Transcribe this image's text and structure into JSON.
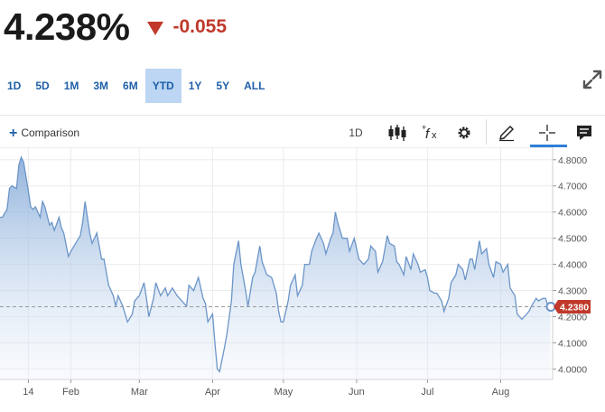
{
  "quote": {
    "price": "4.238%",
    "change": "-0.055",
    "direction_icon": "down-triangle-icon",
    "change_color": "#c0392b"
  },
  "ranges": {
    "items": [
      "1D",
      "5D",
      "1M",
      "3M",
      "6M",
      "YTD",
      "1Y",
      "5Y",
      "ALL"
    ],
    "active": "YTD"
  },
  "toolbar": {
    "comparison_label": "Comparison",
    "interval_label": "1D",
    "icons": [
      "candlestick-icon",
      "function-icon",
      "gear-icon",
      "pencil-icon",
      "crosshair-icon",
      "comment-icon"
    ],
    "active_tool": "crosshair-icon",
    "accent": "#2f7fd9"
  },
  "chart_data": {
    "type": "area",
    "title": "",
    "xlabel": "",
    "ylabel": "",
    "x_tick_labels": [
      "14",
      "Feb",
      "Mar",
      "Apr",
      "May",
      "Jun",
      "Jul",
      "Aug"
    ],
    "y_tick_labels": [
      "4.8000",
      "4.7000",
      "4.6000",
      "4.5000",
      "4.4000",
      "4.3000",
      "4.2000",
      "4.1000",
      "4.0000"
    ],
    "y_ticks": [
      4.8,
      4.7,
      4.6,
      4.5,
      4.4,
      4.3,
      4.2,
      4.1,
      4.0
    ],
    "ylim": [
      3.96,
      4.82
    ],
    "last_value": 4.238,
    "last_value_label": "4.2380",
    "line_color": "#6b95c8",
    "last_badge_color": "#c0392b",
    "grid": true,
    "x_ticks": [
      {
        "label": "14",
        "date": "2024-01-14"
      },
      {
        "label": "Feb",
        "date": "2024-02-01"
      },
      {
        "label": "Mar",
        "date": "2024-03-01"
      },
      {
        "label": "Apr",
        "date": "2024-04-01"
      },
      {
        "label": "May",
        "date": "2024-05-01"
      },
      {
        "label": "Jun",
        "date": "2024-06-01"
      },
      {
        "label": "Jul",
        "date": "2024-07-01"
      },
      {
        "label": "Aug",
        "date": "2024-08-01"
      }
    ],
    "x_range": [
      "2024-01-02",
      "2024-08-23"
    ],
    "series": [
      {
        "values": [
          [
            "2024-01-02",
            4.58
          ],
          [
            "2024-01-03",
            4.58
          ],
          [
            "2024-01-05",
            4.61
          ],
          [
            "2024-01-06",
            4.69
          ],
          [
            "2024-01-07",
            4.7
          ],
          [
            "2024-01-09",
            4.69
          ],
          [
            "2024-01-10",
            4.78
          ],
          [
            "2024-01-11",
            4.81
          ],
          [
            "2024-01-12",
            4.79
          ],
          [
            "2024-01-14",
            4.68
          ],
          [
            "2024-01-15",
            4.62
          ],
          [
            "2024-01-16",
            4.61
          ],
          [
            "2024-01-17",
            4.62
          ],
          [
            "2024-01-19",
            4.58
          ],
          [
            "2024-01-20",
            4.64
          ],
          [
            "2024-01-21",
            4.62
          ],
          [
            "2024-01-23",
            4.55
          ],
          [
            "2024-01-24",
            4.56
          ],
          [
            "2024-01-25",
            4.53
          ],
          [
            "2024-01-27",
            4.58
          ],
          [
            "2024-01-28",
            4.54
          ],
          [
            "2024-01-29",
            4.52
          ],
          [
            "2024-01-31",
            4.43
          ],
          [
            "2024-02-01",
            4.45
          ],
          [
            "2024-02-03",
            4.48
          ],
          [
            "2024-02-05",
            4.51
          ],
          [
            "2024-02-06",
            4.56
          ],
          [
            "2024-02-07",
            4.64
          ],
          [
            "2024-02-09",
            4.52
          ],
          [
            "2024-02-10",
            4.48
          ],
          [
            "2024-02-12",
            4.52
          ],
          [
            "2024-02-14",
            4.42
          ],
          [
            "2024-02-15",
            4.42
          ],
          [
            "2024-02-17",
            4.32
          ],
          [
            "2024-02-19",
            4.28
          ],
          [
            "2024-02-20",
            4.24
          ],
          [
            "2024-02-21",
            4.28
          ],
          [
            "2024-02-23",
            4.24
          ],
          [
            "2024-02-25",
            4.18
          ],
          [
            "2024-02-27",
            4.21
          ],
          [
            "2024-02-28",
            4.26
          ],
          [
            "2024-03-01",
            4.28
          ],
          [
            "2024-03-03",
            4.33
          ],
          [
            "2024-03-04",
            4.27
          ],
          [
            "2024-03-05",
            4.2
          ],
          [
            "2024-03-07",
            4.27
          ],
          [
            "2024-03-08",
            4.33
          ],
          [
            "2024-03-10",
            4.28
          ],
          [
            "2024-03-12",
            4.31
          ],
          [
            "2024-03-13",
            4.28
          ],
          [
            "2024-03-15",
            4.31
          ],
          [
            "2024-03-17",
            4.28
          ],
          [
            "2024-03-19",
            4.26
          ],
          [
            "2024-03-21",
            4.24
          ],
          [
            "2024-03-22",
            4.32
          ],
          [
            "2024-03-24",
            4.3
          ],
          [
            "2024-03-26",
            4.35
          ],
          [
            "2024-03-28",
            4.27
          ],
          [
            "2024-03-29",
            4.25
          ],
          [
            "2024-03-30",
            4.18
          ],
          [
            "2024-04-01",
            4.21
          ],
          [
            "2024-04-02",
            4.1
          ],
          [
            "2024-04-03",
            4.0
          ],
          [
            "2024-04-04",
            3.99
          ],
          [
            "2024-04-06",
            4.08
          ],
          [
            "2024-04-07",
            4.13
          ],
          [
            "2024-04-09",
            4.26
          ],
          [
            "2024-04-10",
            4.4
          ],
          [
            "2024-04-12",
            4.49
          ],
          [
            "2024-04-13",
            4.4
          ],
          [
            "2024-04-15",
            4.3
          ],
          [
            "2024-04-16",
            4.24
          ],
          [
            "2024-04-18",
            4.35
          ],
          [
            "2024-04-19",
            4.37
          ],
          [
            "2024-04-21",
            4.47
          ],
          [
            "2024-04-22",
            4.41
          ],
          [
            "2024-04-24",
            4.36
          ],
          [
            "2024-04-26",
            4.35
          ],
          [
            "2024-04-28",
            4.29
          ],
          [
            "2024-04-29",
            4.22
          ],
          [
            "2024-04-30",
            4.18
          ],
          [
            "2024-05-01",
            4.18
          ],
          [
            "2024-05-03",
            4.26
          ],
          [
            "2024-05-04",
            4.32
          ],
          [
            "2024-05-06",
            4.36
          ],
          [
            "2024-05-07",
            4.28
          ],
          [
            "2024-05-09",
            4.32
          ],
          [
            "2024-05-10",
            4.4
          ],
          [
            "2024-05-12",
            4.4
          ],
          [
            "2024-05-13",
            4.45
          ],
          [
            "2024-05-15",
            4.5
          ],
          [
            "2024-05-16",
            4.52
          ],
          [
            "2024-05-18",
            4.48
          ],
          [
            "2024-05-19",
            4.44
          ],
          [
            "2024-05-21",
            4.5
          ],
          [
            "2024-05-22",
            4.52
          ],
          [
            "2024-05-23",
            4.6
          ],
          [
            "2024-05-24",
            4.56
          ],
          [
            "2024-05-26",
            4.5
          ],
          [
            "2024-05-28",
            4.5
          ],
          [
            "2024-05-29",
            4.45
          ],
          [
            "2024-05-31",
            4.5
          ],
          [
            "2024-06-01",
            4.46
          ],
          [
            "2024-06-02",
            4.42
          ],
          [
            "2024-06-04",
            4.4
          ],
          [
            "2024-06-06",
            4.42
          ],
          [
            "2024-06-07",
            4.47
          ],
          [
            "2024-06-09",
            4.45
          ],
          [
            "2024-06-10",
            4.37
          ],
          [
            "2024-06-12",
            4.41
          ],
          [
            "2024-06-14",
            4.51
          ],
          [
            "2024-06-15",
            4.48
          ],
          [
            "2024-06-17",
            4.47
          ],
          [
            "2024-06-18",
            4.41
          ],
          [
            "2024-06-19",
            4.4
          ],
          [
            "2024-06-21",
            4.36
          ],
          [
            "2024-06-22",
            4.43
          ],
          [
            "2024-06-24",
            4.38
          ],
          [
            "2024-06-25",
            4.44
          ],
          [
            "2024-06-27",
            4.4
          ],
          [
            "2024-06-28",
            4.37
          ],
          [
            "2024-06-30",
            4.38
          ],
          [
            "2024-07-01",
            4.35
          ],
          [
            "2024-07-02",
            4.3
          ],
          [
            "2024-07-04",
            4.29
          ],
          [
            "2024-07-05",
            4.29
          ],
          [
            "2024-07-07",
            4.26
          ],
          [
            "2024-07-08",
            4.22
          ],
          [
            "2024-07-10",
            4.27
          ],
          [
            "2024-07-11",
            4.33
          ],
          [
            "2024-07-13",
            4.36
          ],
          [
            "2024-07-14",
            4.4
          ],
          [
            "2024-07-16",
            4.38
          ],
          [
            "2024-07-17",
            4.34
          ],
          [
            "2024-07-19",
            4.42
          ],
          [
            "2024-07-20",
            4.42
          ],
          [
            "2024-07-21",
            4.38
          ],
          [
            "2024-07-23",
            4.49
          ],
          [
            "2024-07-24",
            4.44
          ],
          [
            "2024-07-26",
            4.46
          ],
          [
            "2024-07-27",
            4.4
          ],
          [
            "2024-07-29",
            4.35
          ],
          [
            "2024-07-30",
            4.41
          ],
          [
            "2024-08-01",
            4.4
          ],
          [
            "2024-08-02",
            4.37
          ],
          [
            "2024-08-04",
            4.4
          ],
          [
            "2024-08-05",
            4.31
          ],
          [
            "2024-08-07",
            4.28
          ],
          [
            "2024-08-08",
            4.21
          ],
          [
            "2024-08-10",
            4.19
          ],
          [
            "2024-08-11",
            4.2
          ],
          [
            "2024-08-13",
            4.22
          ],
          [
            "2024-08-14",
            4.24
          ],
          [
            "2024-08-16",
            4.27
          ],
          [
            "2024-08-17",
            4.26
          ],
          [
            "2024-08-19",
            4.27
          ],
          [
            "2024-08-20",
            4.27
          ],
          [
            "2024-08-21",
            4.24
          ],
          [
            "2024-08-22",
            4.238
          ]
        ]
      }
    ]
  }
}
